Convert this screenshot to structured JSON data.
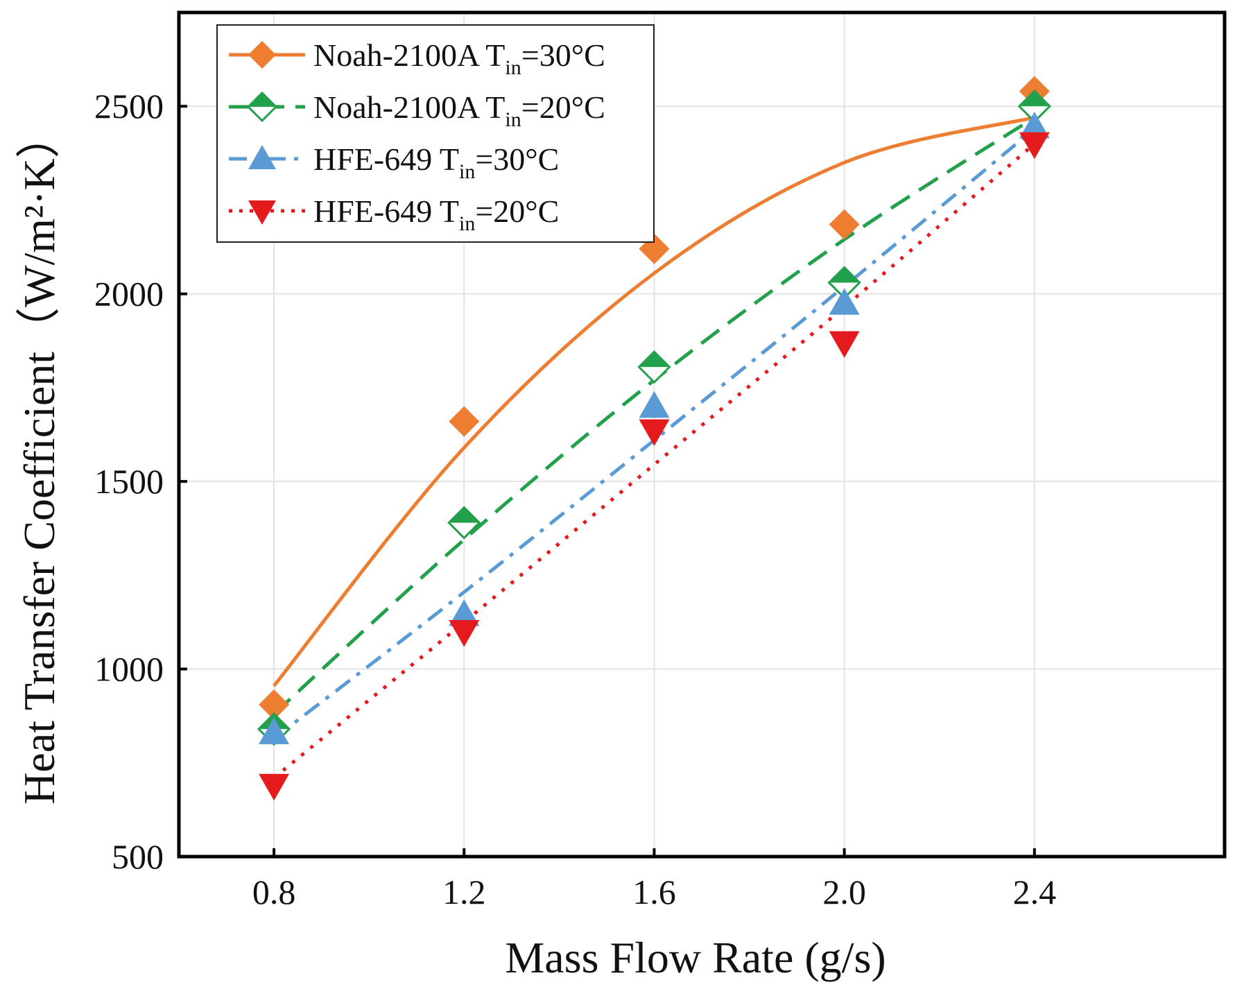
{
  "chart_data": {
    "type": "scatter",
    "xlabel": "Mass Flow Rate (g/s)",
    "ylabel": "Heat Transfer Coefficient（W/m²·K）",
    "xlim": [
      0.6,
      2.8
    ],
    "ylim": [
      500,
      2750
    ],
    "xticks": [
      0.8,
      1.2,
      1.6,
      2.0,
      2.4
    ],
    "xtick_labels": [
      "0.8",
      "1.2",
      "1.6",
      "2.0",
      "2.4"
    ],
    "yticks": [
      500,
      1000,
      1500,
      2000,
      2500
    ],
    "ytick_labels": [
      "500",
      "1000",
      "1500",
      "2000",
      "2500"
    ],
    "grid": true,
    "legend_position": "top-left",
    "series": [
      {
        "name": "Noah-2100A T_in=30°C",
        "label_main": "Noah-2100A  T",
        "label_sub": "in",
        "label_tail": "=30°C",
        "color": "#ED7D31",
        "marker": "diamond",
        "line": "solid",
        "x": [
          0.8,
          1.2,
          1.6,
          2.0,
          2.4
        ],
        "y": [
          905,
          1660,
          2120,
          2185,
          2540
        ],
        "fit_y": [
          955,
          1590,
          2055,
          2350,
          2470
        ]
      },
      {
        "name": "Noah-2100A T_in=20°C",
        "label_main": "Noah-2100A  T",
        "label_sub": "in",
        "label_tail": "=20°C",
        "color": "#22A04B",
        "marker": "diamond-half",
        "line": "dash",
        "x": [
          0.8,
          1.2,
          1.6,
          2.0,
          2.4
        ],
        "y": [
          840,
          1390,
          1805,
          2030,
          2500
        ],
        "fit_y": [
          880,
          1345,
          1770,
          2145,
          2470
        ]
      },
      {
        "name": "HFE-649 T_in=30°C",
        "label_main": "HFE-649 T",
        "label_sub": "in",
        "label_tail": "=30°C",
        "color": "#5B9BD5",
        "marker": "triangle-up",
        "line": "dashdot",
        "x": [
          0.8,
          1.2,
          1.6,
          2.0,
          2.4
        ],
        "y": [
          830,
          1145,
          1700,
          1975,
          2445
        ],
        "fit_y": [
          815,
          1205,
          1610,
          2020,
          2440
        ]
      },
      {
        "name": "HFE-649 T_in=20°C",
        "label_main": "HFE-649 T",
        "label_sub": "in",
        "label_tail": "=20°C",
        "color": "#E41A1C",
        "marker": "triangle-down",
        "line": "dot",
        "x": [
          0.8,
          1.2,
          1.6,
          2.0,
          2.4
        ],
        "y": [
          690,
          1100,
          1635,
          1870,
          2400
        ],
        "fit_y": [
          710,
          1125,
          1545,
          1965,
          2400
        ]
      }
    ]
  }
}
